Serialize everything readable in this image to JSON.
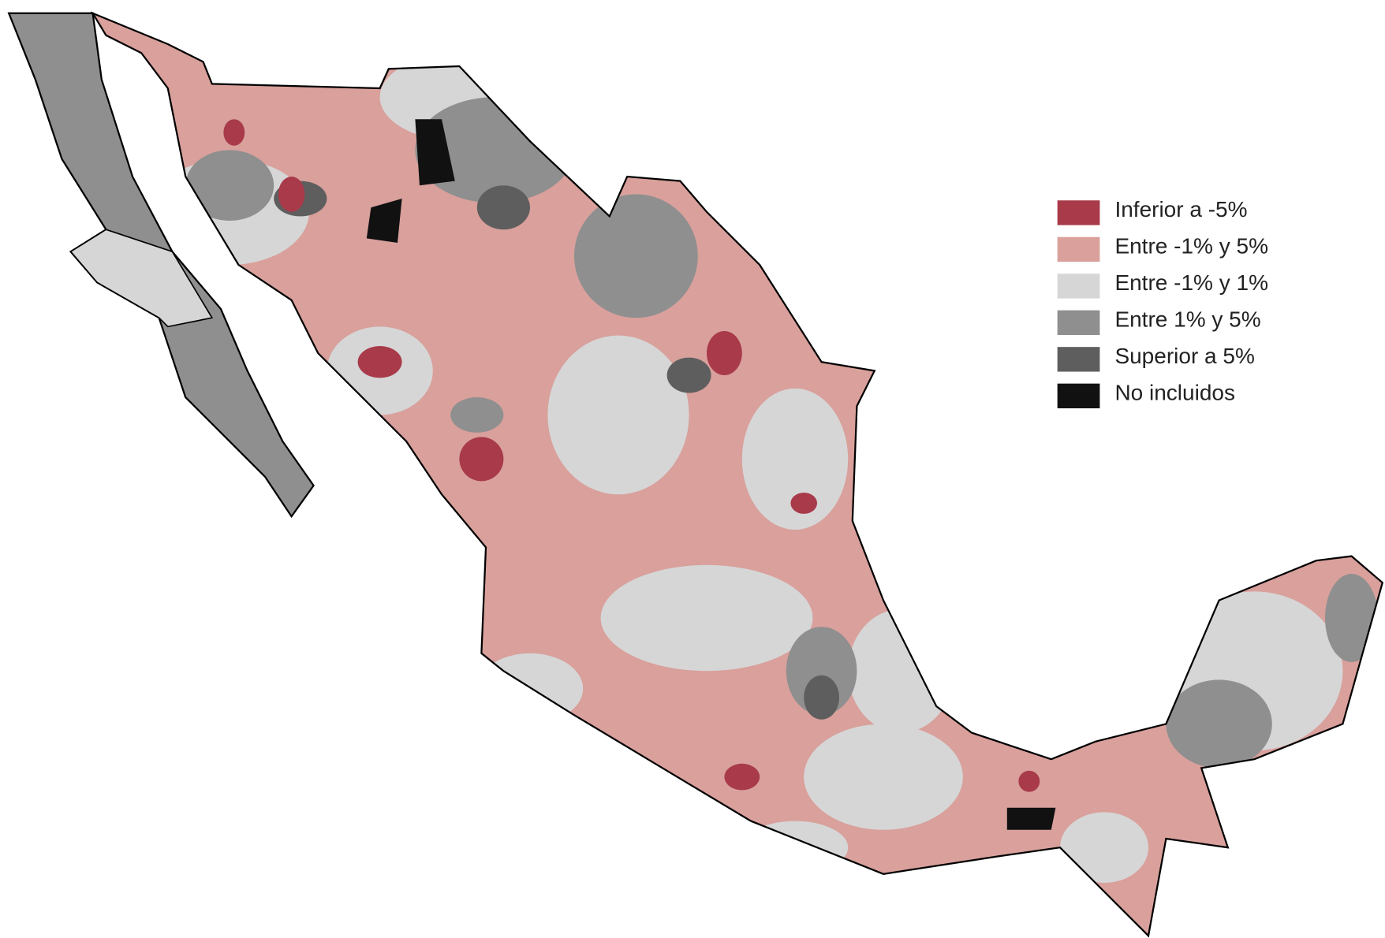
{
  "legend": {
    "items": [
      {
        "label": "Inferior a -5%",
        "color": "#a83a4a"
      },
      {
        "label": "Entre -1% y 5%",
        "color": "#d9a09c"
      },
      {
        "label": "Entre -1% y 1%",
        "color": "#d6d6d6"
      },
      {
        "label": "Entre 1% y 5%",
        "color": "#8f8f8f"
      },
      {
        "label": "Superior a 5%",
        "color": "#5e5e5e"
      },
      {
        "label": "No incluidos",
        "color": "#111111"
      }
    ]
  }
}
